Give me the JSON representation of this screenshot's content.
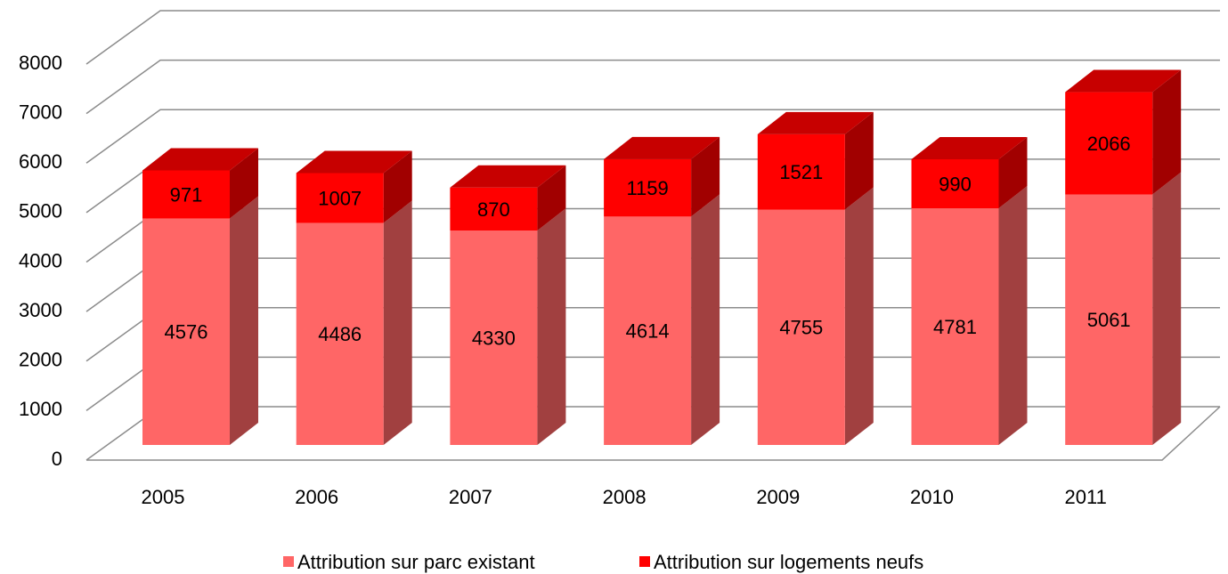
{
  "chart_data": {
    "type": "bar",
    "stacked": true,
    "categories": [
      "2005",
      "2006",
      "2007",
      "2008",
      "2009",
      "2010",
      "2011"
    ],
    "series": [
      {
        "name": "Attribution sur parc existant",
        "color": "#ff6666",
        "values": [
          4576,
          4486,
          4330,
          4614,
          4755,
          4781,
          5061
        ]
      },
      {
        "name": "Attribution sur logements neufs",
        "color": "#ff0000",
        "values": [
          971,
          1007,
          870,
          1159,
          1521,
          990,
          2066
        ]
      }
    ],
    "ylim": [
      0,
      8000
    ],
    "yticks": [
      0,
      1000,
      2000,
      3000,
      4000,
      5000,
      6000,
      7000,
      8000
    ],
    "grid": true,
    "legend": "bottom"
  }
}
